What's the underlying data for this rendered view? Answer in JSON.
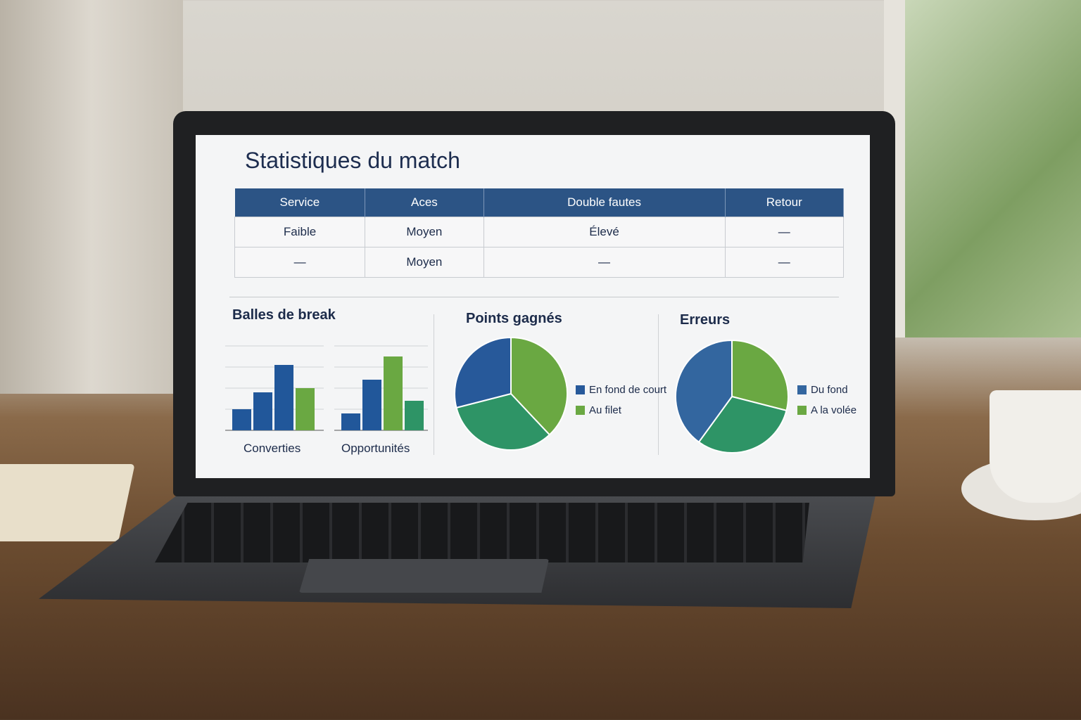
{
  "dashboard": {
    "title": "Statistiques du match",
    "table": {
      "headers": [
        "Service",
        "Aces",
        "Double fautes",
        "Retour"
      ],
      "rows": [
        [
          "Faible",
          "Moyen",
          "Élevé",
          "—"
        ],
        [
          "—",
          "Moyen",
          "—",
          "—"
        ]
      ]
    }
  },
  "colors": {
    "header": "#2c5485",
    "blue_dark": "#21579a",
    "blue": "#2b6aad",
    "green": "#6aa842",
    "teal": "#2e9466"
  },
  "chart_data": [
    {
      "type": "bar",
      "title": "Balles de break",
      "grid": true,
      "groups": [
        {
          "label": "Converties",
          "values": [
            1,
            1.8,
            3.1,
            2
          ],
          "colors": [
            "#21579a",
            "#21579a",
            "#21579a",
            "#6aa842"
          ]
        },
        {
          "label": "Opportunités",
          "values": [
            0.8,
            2.4,
            3.5,
            1.4
          ],
          "colors": [
            "#21579a",
            "#21579a",
            "#6aa842",
            "#2e9466"
          ]
        }
      ],
      "ylim": [
        0,
        4
      ]
    },
    {
      "type": "pie",
      "title": "Points gagnés",
      "slices": [
        {
          "value": 38,
          "color": "#6aa842"
        },
        {
          "value": 33,
          "color": "#2e9466"
        },
        {
          "value": 29,
          "color": "#27599a"
        }
      ],
      "legend": [
        {
          "name": "En fond de court",
          "color": "#27599a"
        },
        {
          "name": "Au filet",
          "color": "#6aa842"
        }
      ],
      "legend_position": "right"
    },
    {
      "type": "pie",
      "title": "Erreurs",
      "slices": [
        {
          "value": 29,
          "color": "#6aa842"
        },
        {
          "value": 31,
          "color": "#2e9466"
        },
        {
          "value": 40,
          "color": "#33669f"
        }
      ],
      "legend": [
        {
          "name": "Du fond",
          "color": "#33669f"
        },
        {
          "name": "A la volée",
          "color": "#6aa842"
        }
      ],
      "legend_position": "right"
    }
  ]
}
